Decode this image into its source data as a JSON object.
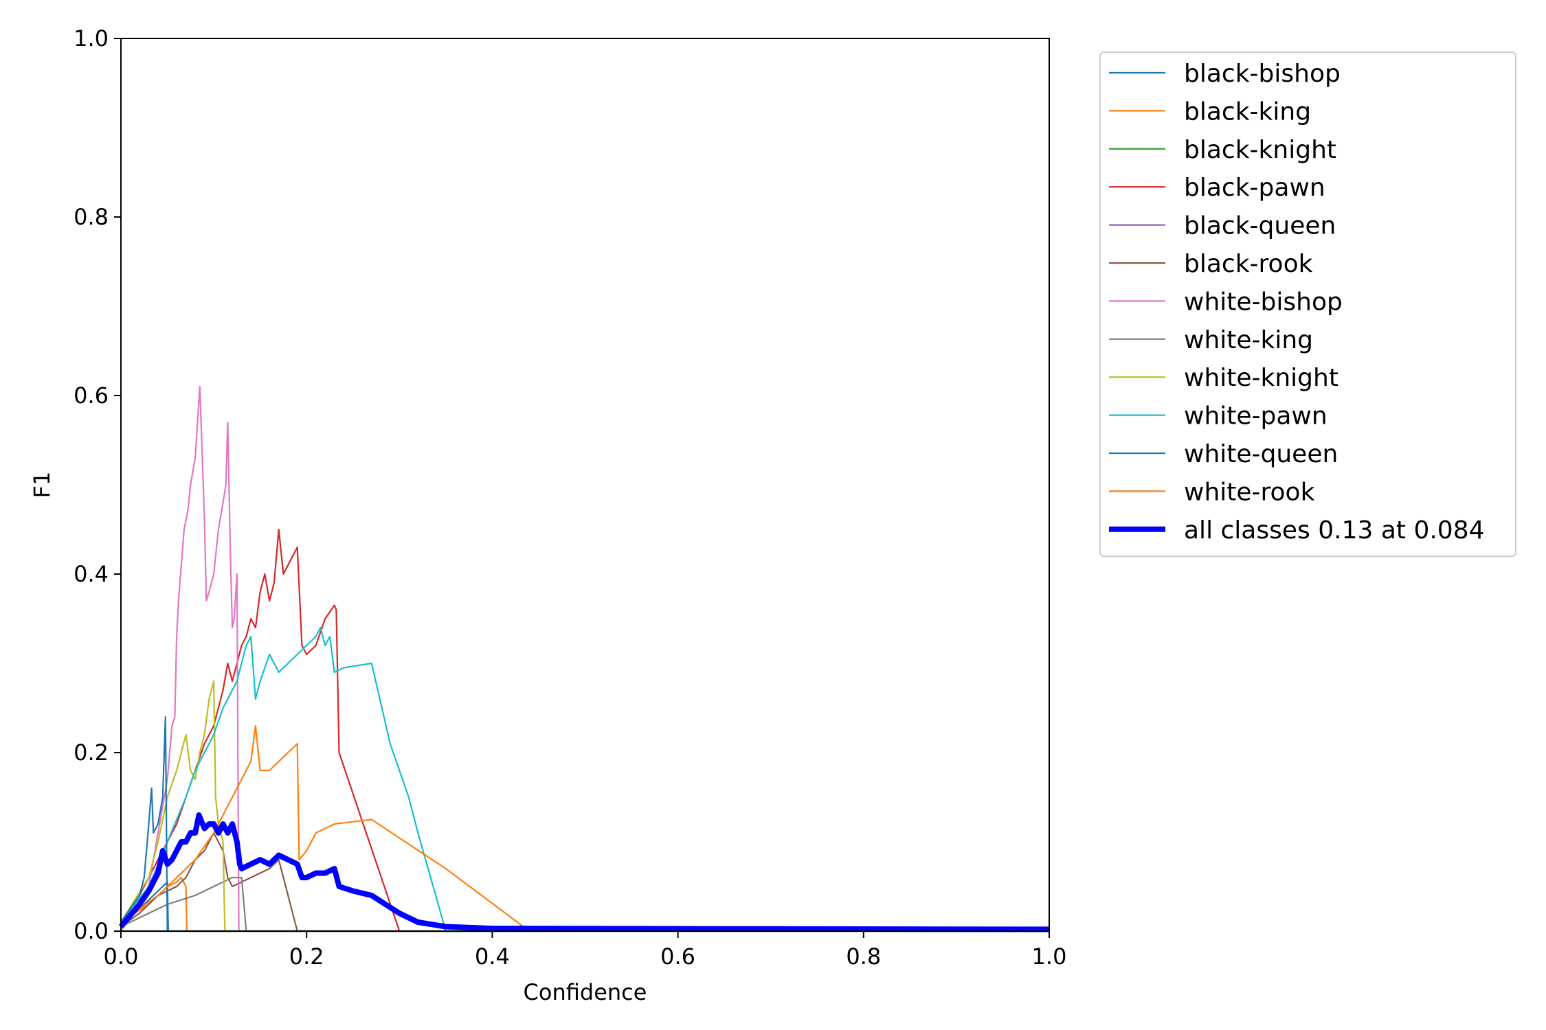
{
  "chart_data": {
    "type": "line",
    "title": "",
    "xlabel": "Confidence",
    "ylabel": "F1",
    "xlim": [
      0.0,
      1.0
    ],
    "ylim": [
      0.0,
      1.0
    ],
    "x_ticks": [
      "0.0",
      "0.2",
      "0.4",
      "0.6",
      "0.8",
      "1.0"
    ],
    "y_ticks": [
      "0.0",
      "0.2",
      "0.4",
      "0.6",
      "0.8",
      "1.0"
    ],
    "grid": false,
    "legend_position": "outside-top-right",
    "series": [
      {
        "name": "black-bishop",
        "color": "#1f77b4",
        "points": [
          [
            0.0,
            0.01
          ],
          [
            0.02,
            0.025
          ],
          [
            0.035,
            0.04
          ],
          [
            0.045,
            0.05
          ],
          [
            0.05,
            0.055
          ],
          [
            0.051,
            0.0
          ],
          [
            1.0,
            0.0
          ]
        ]
      },
      {
        "name": "black-king",
        "color": "#ff7f0e",
        "points": [
          [
            0.0,
            0.01
          ],
          [
            0.03,
            0.03
          ],
          [
            0.05,
            0.05
          ],
          [
            0.06,
            0.055
          ],
          [
            0.065,
            0.06
          ],
          [
            0.07,
            0.05
          ],
          [
            0.071,
            0.0
          ],
          [
            1.0,
            0.0
          ]
        ]
      },
      {
        "name": "black-knight",
        "color": "#2ca02c",
        "points": [
          [
            0.0,
            0.0
          ],
          [
            1.0,
            0.0
          ]
        ]
      },
      {
        "name": "black-pawn",
        "color": "#d62728",
        "points": [
          [
            0.0,
            0.01
          ],
          [
            0.02,
            0.04
          ],
          [
            0.04,
            0.08
          ],
          [
            0.06,
            0.12
          ],
          [
            0.08,
            0.18
          ],
          [
            0.09,
            0.21
          ],
          [
            0.1,
            0.23
          ],
          [
            0.11,
            0.27
          ],
          [
            0.115,
            0.3
          ],
          [
            0.12,
            0.28
          ],
          [
            0.125,
            0.3
          ],
          [
            0.13,
            0.32
          ],
          [
            0.135,
            0.33
          ],
          [
            0.14,
            0.35
          ],
          [
            0.145,
            0.34
          ],
          [
            0.15,
            0.38
          ],
          [
            0.155,
            0.4
          ],
          [
            0.16,
            0.37
          ],
          [
            0.165,
            0.39
          ],
          [
            0.17,
            0.45
          ],
          [
            0.175,
            0.4
          ],
          [
            0.18,
            0.41
          ],
          [
            0.185,
            0.42
          ],
          [
            0.19,
            0.43
          ],
          [
            0.195,
            0.32
          ],
          [
            0.2,
            0.31
          ],
          [
            0.21,
            0.32
          ],
          [
            0.22,
            0.35
          ],
          [
            0.23,
            0.365
          ],
          [
            0.232,
            0.36
          ],
          [
            0.235,
            0.2
          ],
          [
            0.3,
            0.0
          ],
          [
            1.0,
            0.0
          ]
        ]
      },
      {
        "name": "black-queen",
        "color": "#9467bd",
        "points": [
          [
            0.0,
            0.0
          ],
          [
            1.0,
            0.0
          ]
        ]
      },
      {
        "name": "black-rook",
        "color": "#8c564b",
        "points": [
          [
            0.0,
            0.005
          ],
          [
            0.02,
            0.02
          ],
          [
            0.04,
            0.04
          ],
          [
            0.06,
            0.05
          ],
          [
            0.07,
            0.06
          ],
          [
            0.08,
            0.08
          ],
          [
            0.09,
            0.09
          ],
          [
            0.1,
            0.11
          ],
          [
            0.105,
            0.1
          ],
          [
            0.11,
            0.09
          ],
          [
            0.115,
            0.06
          ],
          [
            0.12,
            0.05
          ],
          [
            0.13,
            0.055
          ],
          [
            0.15,
            0.065
          ],
          [
            0.16,
            0.07
          ],
          [
            0.17,
            0.08
          ],
          [
            0.19,
            0.0
          ],
          [
            1.0,
            0.0
          ]
        ]
      },
      {
        "name": "white-bishop",
        "color": "#e377c2",
        "points": [
          [
            0.0,
            0.0
          ],
          [
            0.03,
            0.05
          ],
          [
            0.05,
            0.17
          ],
          [
            0.055,
            0.23
          ],
          [
            0.058,
            0.24
          ],
          [
            0.06,
            0.33
          ],
          [
            0.062,
            0.37
          ],
          [
            0.065,
            0.41
          ],
          [
            0.068,
            0.45
          ],
          [
            0.072,
            0.47
          ],
          [
            0.075,
            0.5
          ],
          [
            0.08,
            0.53
          ],
          [
            0.085,
            0.61
          ],
          [
            0.09,
            0.46
          ],
          [
            0.092,
            0.37
          ],
          [
            0.095,
            0.38
          ],
          [
            0.1,
            0.4
          ],
          [
            0.105,
            0.45
          ],
          [
            0.11,
            0.48
          ],
          [
            0.113,
            0.5
          ],
          [
            0.115,
            0.57
          ],
          [
            0.118,
            0.42
          ],
          [
            0.12,
            0.34
          ],
          [
            0.122,
            0.35
          ],
          [
            0.125,
            0.4
          ],
          [
            0.127,
            0.0
          ],
          [
            1.0,
            0.0
          ]
        ]
      },
      {
        "name": "white-king",
        "color": "#7f7f7f",
        "points": [
          [
            0.0,
            0.005
          ],
          [
            0.03,
            0.02
          ],
          [
            0.05,
            0.03
          ],
          [
            0.08,
            0.04
          ],
          [
            0.1,
            0.05
          ],
          [
            0.12,
            0.06
          ],
          [
            0.13,
            0.06
          ],
          [
            0.135,
            0.0
          ],
          [
            1.0,
            0.0
          ]
        ]
      },
      {
        "name": "white-knight",
        "color": "#bcbd22",
        "points": [
          [
            0.0,
            0.01
          ],
          [
            0.03,
            0.06
          ],
          [
            0.04,
            0.1
          ],
          [
            0.05,
            0.15
          ],
          [
            0.06,
            0.18
          ],
          [
            0.065,
            0.2
          ],
          [
            0.07,
            0.22
          ],
          [
            0.075,
            0.18
          ],
          [
            0.08,
            0.17
          ],
          [
            0.085,
            0.2
          ],
          [
            0.09,
            0.22
          ],
          [
            0.095,
            0.26
          ],
          [
            0.1,
            0.28
          ],
          [
            0.102,
            0.15
          ],
          [
            0.105,
            0.12
          ],
          [
            0.11,
            0.1
          ],
          [
            0.112,
            0.0
          ],
          [
            1.0,
            0.0
          ]
        ]
      },
      {
        "name": "white-pawn",
        "color": "#17becf",
        "points": [
          [
            0.0,
            0.01
          ],
          [
            0.03,
            0.05
          ],
          [
            0.05,
            0.1
          ],
          [
            0.07,
            0.15
          ],
          [
            0.08,
            0.18
          ],
          [
            0.09,
            0.2
          ],
          [
            0.1,
            0.22
          ],
          [
            0.11,
            0.25
          ],
          [
            0.12,
            0.27
          ],
          [
            0.125,
            0.28
          ],
          [
            0.13,
            0.3
          ],
          [
            0.135,
            0.32
          ],
          [
            0.14,
            0.33
          ],
          [
            0.145,
            0.26
          ],
          [
            0.15,
            0.28
          ],
          [
            0.16,
            0.31
          ],
          [
            0.17,
            0.29
          ],
          [
            0.18,
            0.3
          ],
          [
            0.19,
            0.31
          ],
          [
            0.2,
            0.32
          ],
          [
            0.21,
            0.33
          ],
          [
            0.215,
            0.34
          ],
          [
            0.22,
            0.32
          ],
          [
            0.225,
            0.33
          ],
          [
            0.23,
            0.29
          ],
          [
            0.24,
            0.295
          ],
          [
            0.27,
            0.3
          ],
          [
            0.29,
            0.21
          ],
          [
            0.3,
            0.18
          ],
          [
            0.31,
            0.15
          ],
          [
            0.32,
            0.11
          ],
          [
            0.35,
            0.0
          ],
          [
            1.0,
            0.0
          ]
        ]
      },
      {
        "name": "white-queen",
        "color": "#1f77b4",
        "points": [
          [
            0.0,
            0.01
          ],
          [
            0.02,
            0.04
          ],
          [
            0.025,
            0.06
          ],
          [
            0.03,
            0.12
          ],
          [
            0.033,
            0.16
          ],
          [
            0.035,
            0.11
          ],
          [
            0.04,
            0.12
          ],
          [
            0.045,
            0.15
          ],
          [
            0.048,
            0.24
          ],
          [
            0.05,
            0.0
          ],
          [
            1.0,
            0.0
          ]
        ]
      },
      {
        "name": "white-rook",
        "color": "#ff7f0e",
        "points": [
          [
            0.0,
            0.01
          ],
          [
            0.04,
            0.04
          ],
          [
            0.06,
            0.06
          ],
          [
            0.08,
            0.08
          ],
          [
            0.1,
            0.11
          ],
          [
            0.12,
            0.15
          ],
          [
            0.13,
            0.17
          ],
          [
            0.14,
            0.19
          ],
          [
            0.145,
            0.23
          ],
          [
            0.15,
            0.18
          ],
          [
            0.16,
            0.18
          ],
          [
            0.17,
            0.19
          ],
          [
            0.18,
            0.2
          ],
          [
            0.19,
            0.21
          ],
          [
            0.192,
            0.08
          ],
          [
            0.2,
            0.09
          ],
          [
            0.21,
            0.11
          ],
          [
            0.23,
            0.12
          ],
          [
            0.27,
            0.125
          ],
          [
            0.35,
            0.07
          ],
          [
            0.44,
            0.0
          ],
          [
            1.0,
            0.0
          ]
        ]
      }
    ],
    "aggregate": {
      "name": "all classes 0.13 at 0.084",
      "color": "#0000ff",
      "points": [
        [
          0.0,
          0.005
        ],
        [
          0.02,
          0.03
        ],
        [
          0.03,
          0.045
        ],
        [
          0.04,
          0.065
        ],
        [
          0.045,
          0.09
        ],
        [
          0.05,
          0.075
        ],
        [
          0.055,
          0.08
        ],
        [
          0.06,
          0.09
        ],
        [
          0.065,
          0.1
        ],
        [
          0.07,
          0.1
        ],
        [
          0.075,
          0.11
        ],
        [
          0.08,
          0.11
        ],
        [
          0.084,
          0.13
        ],
        [
          0.09,
          0.115
        ],
        [
          0.095,
          0.12
        ],
        [
          0.1,
          0.12
        ],
        [
          0.105,
          0.11
        ],
        [
          0.11,
          0.12
        ],
        [
          0.115,
          0.11
        ],
        [
          0.12,
          0.12
        ],
        [
          0.125,
          0.1
        ],
        [
          0.128,
          0.075
        ],
        [
          0.13,
          0.07
        ],
        [
          0.14,
          0.075
        ],
        [
          0.15,
          0.08
        ],
        [
          0.16,
          0.075
        ],
        [
          0.17,
          0.085
        ],
        [
          0.18,
          0.08
        ],
        [
          0.19,
          0.075
        ],
        [
          0.195,
          0.06
        ],
        [
          0.2,
          0.06
        ],
        [
          0.21,
          0.065
        ],
        [
          0.22,
          0.065
        ],
        [
          0.23,
          0.07
        ],
        [
          0.235,
          0.05
        ],
        [
          0.25,
          0.045
        ],
        [
          0.27,
          0.04
        ],
        [
          0.3,
          0.02
        ],
        [
          0.32,
          0.01
        ],
        [
          0.35,
          0.005
        ],
        [
          0.4,
          0.003
        ],
        [
          1.0,
          0.002
        ]
      ]
    }
  }
}
